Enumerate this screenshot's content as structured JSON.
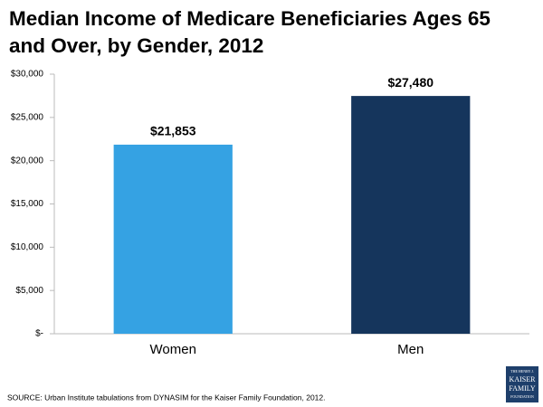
{
  "chart_data": {
    "type": "bar",
    "title": "Median Income of Medicare Beneficiaries Ages 65 and Over, by Gender, 2012",
    "categories": [
      "Women",
      "Men"
    ],
    "values": [
      21853,
      27480
    ],
    "value_labels": [
      "$21,853",
      "$27,480"
    ],
    "colors": [
      "#35a2e3",
      "#15355c"
    ],
    "ylim": [
      0,
      30000
    ],
    "yticks": [
      {
        "value": 0,
        "label": "$-"
      },
      {
        "value": 5000,
        "label": "$5,000"
      },
      {
        "value": 10000,
        "label": "$10,000"
      },
      {
        "value": 15000,
        "label": "$15,000"
      },
      {
        "value": 20000,
        "label": "$20,000"
      },
      {
        "value": 25000,
        "label": "$25,000"
      },
      {
        "value": 30000,
        "label": "$30,000"
      }
    ],
    "grid": false,
    "source": "SOURCE:  Urban Institute tabulations from DYNASIM for the Kaiser Family Foundation, 2012.",
    "logo": [
      "THE HENRY J.",
      "KAISER",
      "FAMILY",
      "FOUNDATION"
    ]
  }
}
